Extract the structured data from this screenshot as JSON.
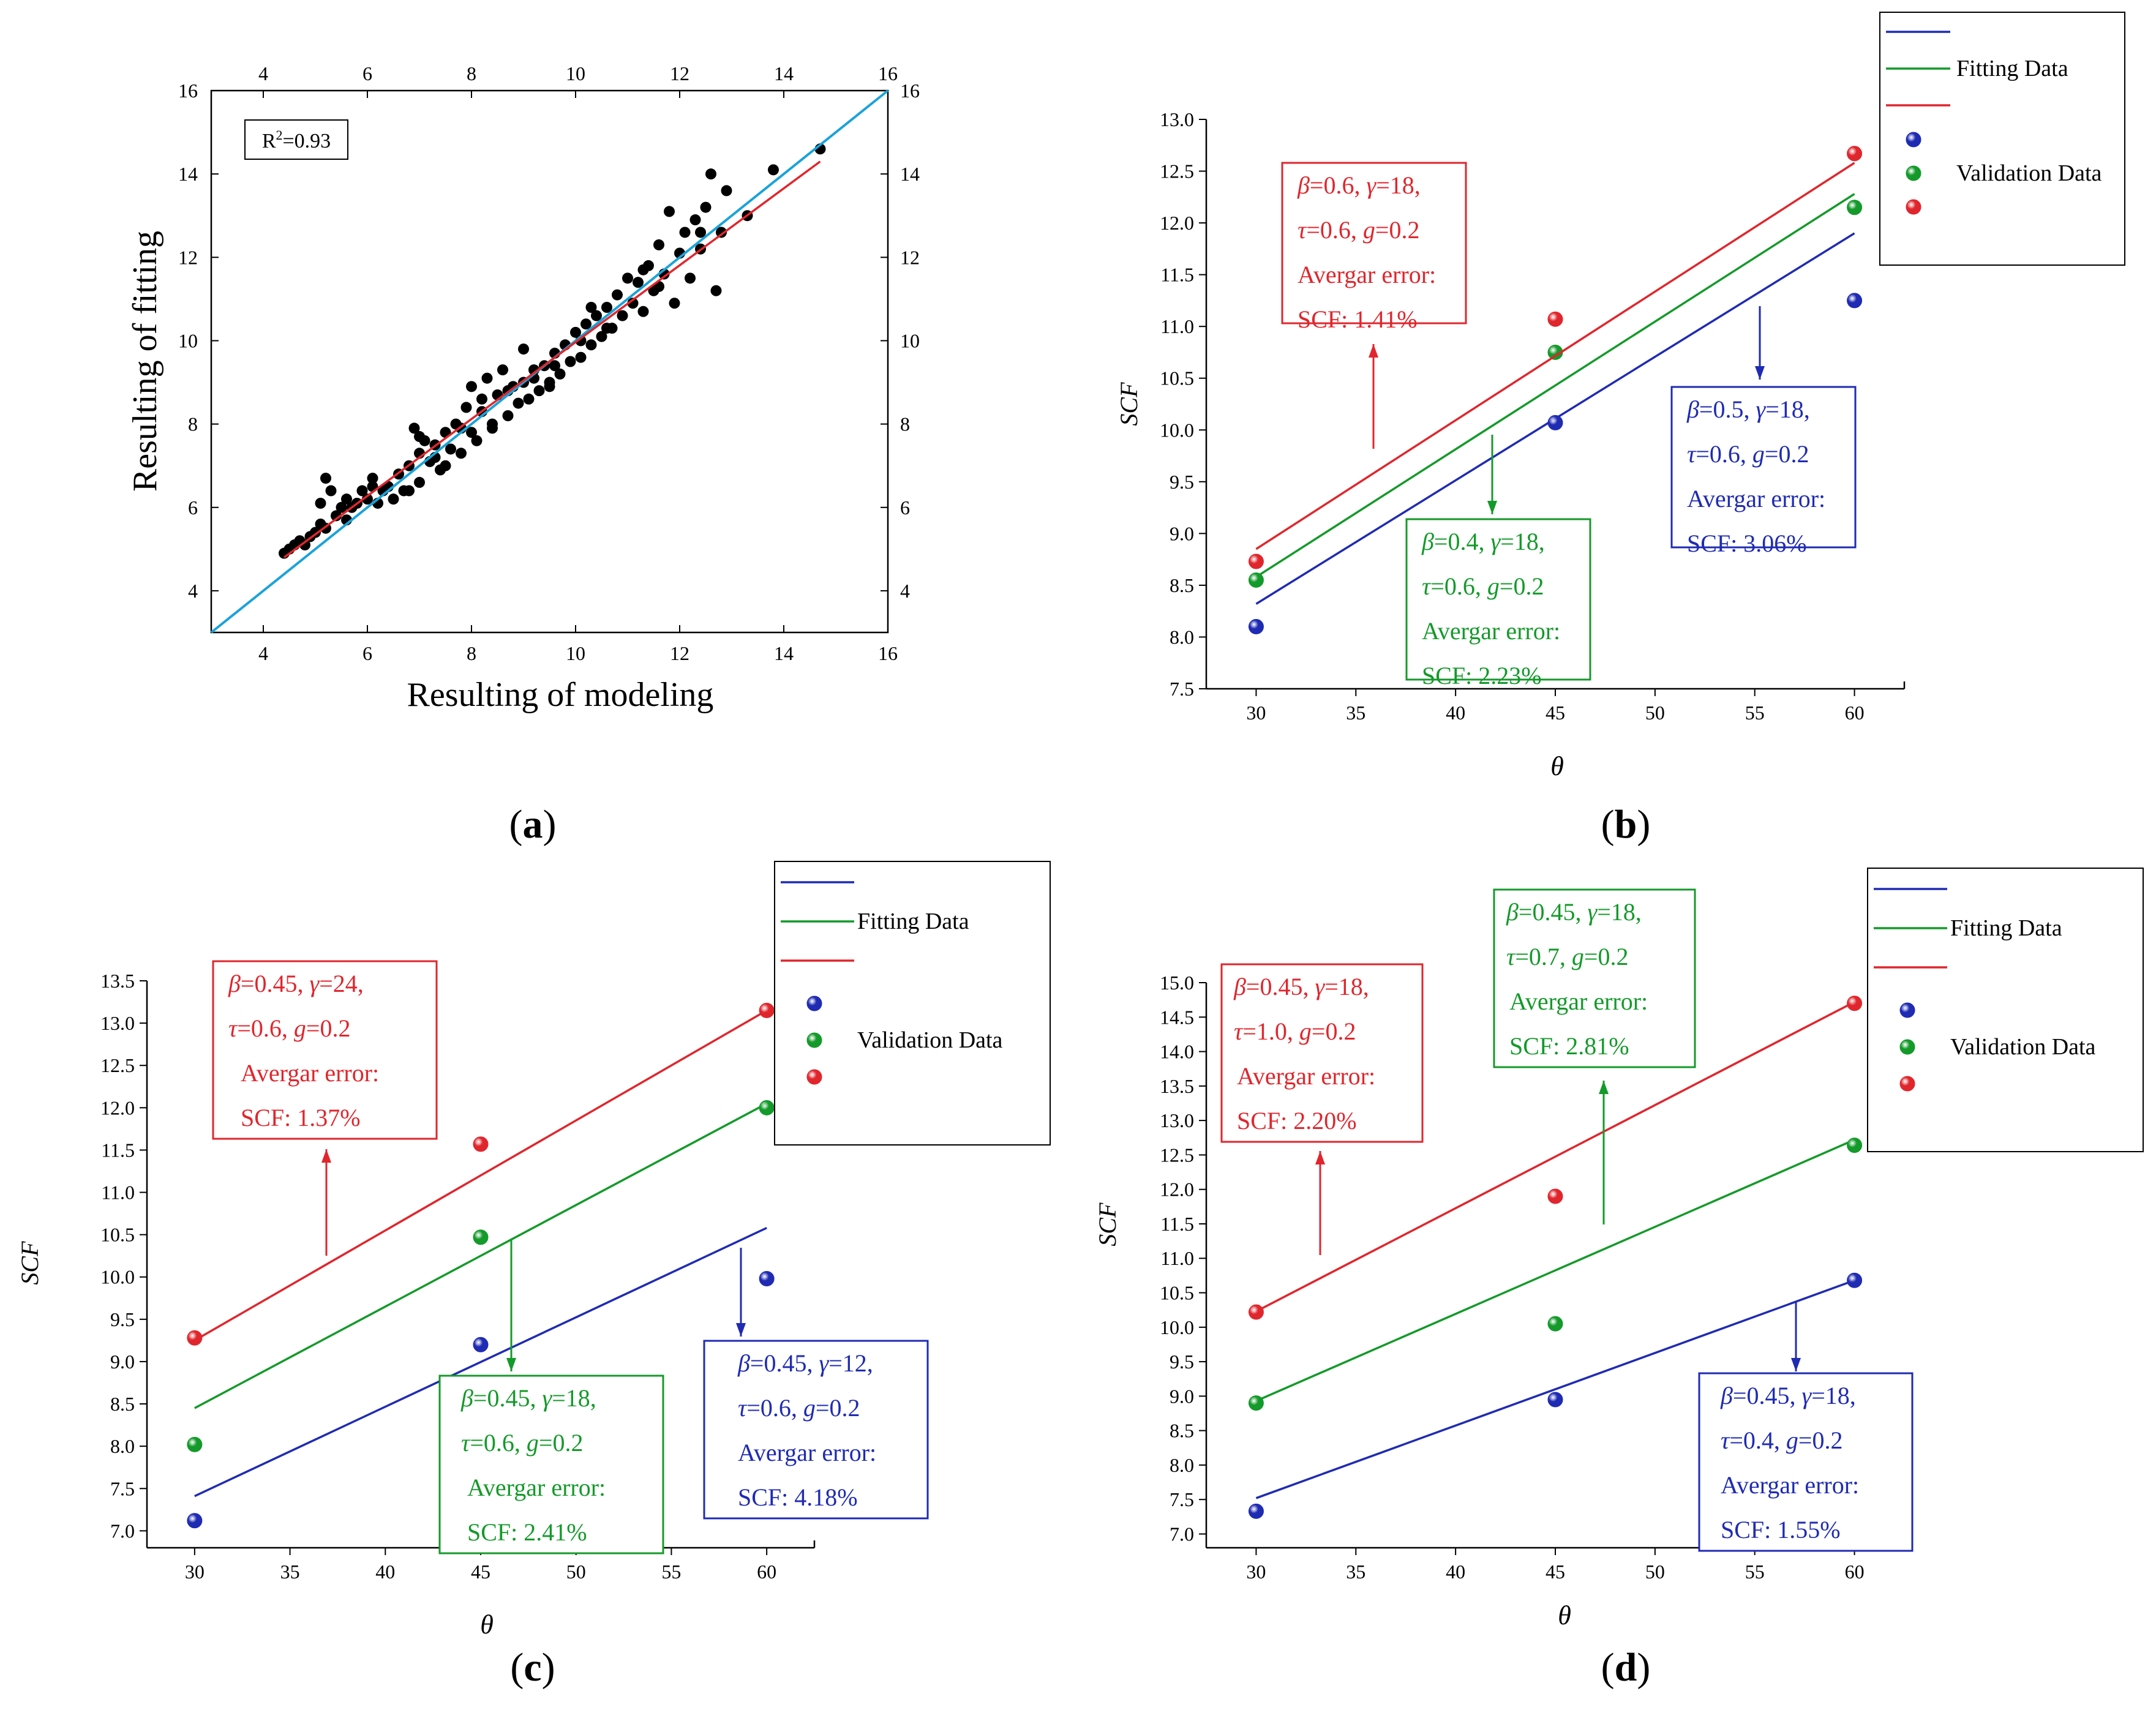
{
  "chart_data": [
    {
      "panel": "a",
      "panel_label": "a",
      "type": "scatter",
      "xlabel": "Resulting of modeling",
      "ylabel": "Resulting of fitting",
      "xlim": [
        3,
        16
      ],
      "ylim": [
        3,
        16
      ],
      "xticks": [
        4,
        6,
        8,
        10,
        12,
        14,
        16
      ],
      "yticks": [
        4,
        6,
        8,
        10,
        12,
        14,
        16
      ],
      "annotation": {
        "r2_prefix": "R",
        "r2_sup": "2",
        "r2_value": "=0.93"
      },
      "colors": {
        "points": "#000000",
        "ideal_line": "#1aa3d8",
        "fit_line": "#e0262d"
      },
      "ideal_line": {
        "x": [
          3,
          16
        ],
        "y": [
          3,
          16
        ]
      },
      "fit_line": {
        "x": [
          4.4,
          14.7
        ],
        "y": [
          4.8,
          14.3
        ]
      },
      "points": [
        [
          4.4,
          4.9
        ],
        [
          4.5,
          5.0
        ],
        [
          4.6,
          5.1
        ],
        [
          4.7,
          5.2
        ],
        [
          4.8,
          5.1
        ],
        [
          4.9,
          5.3
        ],
        [
          5.0,
          5.4
        ],
        [
          5.1,
          5.6
        ],
        [
          5.1,
          6.1
        ],
        [
          5.2,
          6.7
        ],
        [
          5.3,
          6.4
        ],
        [
          5.4,
          5.8
        ],
        [
          5.5,
          6.0
        ],
        [
          5.6,
          6.2
        ],
        [
          5.7,
          6.0
        ],
        [
          5.8,
          6.1
        ],
        [
          5.9,
          6.4
        ],
        [
          6.0,
          6.2
        ],
        [
          6.1,
          6.7
        ],
        [
          6.2,
          6.1
        ],
        [
          6.3,
          6.4
        ],
        [
          6.4,
          6.5
        ],
        [
          6.5,
          6.2
        ],
        [
          6.6,
          6.8
        ],
        [
          6.7,
          6.4
        ],
        [
          6.8,
          7.0
        ],
        [
          6.9,
          7.9
        ],
        [
          7.0,
          7.3
        ],
        [
          7.0,
          6.6
        ],
        [
          7.1,
          7.6
        ],
        [
          7.2,
          7.1
        ],
        [
          7.3,
          7.5
        ],
        [
          7.4,
          6.9
        ],
        [
          7.5,
          7.8
        ],
        [
          7.5,
          7.0
        ],
        [
          7.6,
          7.4
        ],
        [
          7.7,
          8.0
        ],
        [
          7.8,
          7.3
        ],
        [
          7.9,
          8.4
        ],
        [
          8.0,
          7.8
        ],
        [
          8.0,
          8.9
        ],
        [
          8.1,
          7.6
        ],
        [
          8.2,
          8.3
        ],
        [
          8.3,
          9.1
        ],
        [
          8.4,
          8.0
        ],
        [
          8.5,
          8.7
        ],
        [
          8.6,
          9.3
        ],
        [
          8.7,
          8.2
        ],
        [
          8.8,
          8.9
        ],
        [
          8.9,
          8.5
        ],
        [
          9.0,
          9.0
        ],
        [
          9.1,
          8.6
        ],
        [
          9.2,
          9.3
        ],
        [
          9.3,
          8.8
        ],
        [
          9.4,
          9.4
        ],
        [
          9.5,
          8.9
        ],
        [
          9.6,
          9.7
        ],
        [
          9.7,
          9.2
        ],
        [
          9.8,
          9.9
        ],
        [
          9.9,
          9.5
        ],
        [
          10.0,
          10.2
        ],
        [
          10.1,
          9.6
        ],
        [
          10.2,
          10.4
        ],
        [
          10.3,
          9.9
        ],
        [
          10.4,
          10.6
        ],
        [
          10.5,
          10.1
        ],
        [
          10.6,
          10.8
        ],
        [
          10.7,
          10.3
        ],
        [
          10.8,
          11.1
        ],
        [
          10.9,
          10.6
        ],
        [
          11.0,
          11.5
        ],
        [
          11.1,
          10.9
        ],
        [
          11.2,
          11.4
        ],
        [
          11.3,
          10.7
        ],
        [
          11.4,
          11.8
        ],
        [
          11.5,
          11.2
        ],
        [
          11.6,
          12.3
        ],
        [
          11.7,
          11.6
        ],
        [
          11.8,
          13.1
        ],
        [
          11.9,
          10.9
        ],
        [
          12.0,
          12.1
        ],
        [
          12.1,
          12.6
        ],
        [
          12.2,
          11.5
        ],
        [
          12.3,
          12.9
        ],
        [
          12.4,
          12.2
        ],
        [
          12.5,
          13.2
        ],
        [
          12.6,
          14.0
        ],
        [
          12.7,
          11.2
        ],
        [
          12.8,
          12.6
        ],
        [
          12.9,
          13.6
        ],
        [
          13.3,
          13.0
        ],
        [
          13.8,
          14.1
        ],
        [
          14.7,
          14.6
        ],
        [
          5.2,
          5.5
        ],
        [
          5.6,
          5.7
        ],
        [
          6.1,
          6.5
        ],
        [
          6.8,
          6.4
        ],
        [
          7.3,
          7.2
        ],
        [
          7.8,
          7.9
        ],
        [
          8.2,
          8.6
        ],
        [
          8.7,
          8.8
        ],
        [
          9.2,
          9.1
        ],
        [
          9.6,
          9.4
        ],
        [
          10.1,
          10.0
        ],
        [
          10.6,
          10.3
        ],
        [
          11.3,
          11.7
        ],
        [
          11.6,
          11.3
        ],
        [
          12.4,
          12.6
        ],
        [
          9.0,
          9.8
        ],
        [
          9.5,
          9.0
        ],
        [
          10.3,
          10.8
        ],
        [
          8.4,
          7.9
        ],
        [
          7.0,
          7.7
        ]
      ]
    },
    {
      "panel": "b",
      "panel_label": "b",
      "type": "line+scatter",
      "xlabel": "θ",
      "ylabel": "SCF",
      "xlim": [
        27.5,
        62.5
      ],
      "ylim": [
        7.5,
        13.0
      ],
      "xticks": [
        30,
        35,
        40,
        45,
        50,
        55,
        60
      ],
      "yticks": [
        7.5,
        8.0,
        8.5,
        9.0,
        9.5,
        10.0,
        10.5,
        11.0,
        11.5,
        12.0,
        12.5,
        13.0
      ],
      "legend": {
        "fitting_label": "Fitting Data",
        "validation_label": "Validation Data"
      },
      "series": [
        {
          "name": "blue",
          "color": "#1f2bb3",
          "fit": {
            "x": [
              30,
              60
            ],
            "y": [
              8.32,
              11.9
            ]
          },
          "validation": {
            "x": [
              30,
              45,
              60
            ],
            "y": [
              8.1,
              10.07,
              11.25
            ]
          },
          "box": {
            "params1": "β=0.5, γ=18,",
            "params2": "τ=0.6, g=0.2",
            "err1": "Avergar error:",
            "err2": "SCF: 3.06%"
          }
        },
        {
          "name": "green",
          "color": "#149a2a",
          "fit": {
            "x": [
              30,
              60
            ],
            "y": [
              8.58,
              12.28
            ]
          },
          "validation": {
            "x": [
              30,
              45,
              60
            ],
            "y": [
              8.55,
              10.75,
              12.15
            ]
          },
          "box": {
            "params1": "β=0.4, γ=18,",
            "params2": "τ=0.6, g=0.2",
            "err1": "Avergar error:",
            "err2": "SCF: 2.23%"
          }
        },
        {
          "name": "red",
          "color": "#e0262d",
          "fit": {
            "x": [
              30,
              60
            ],
            "y": [
              8.85,
              12.58
            ]
          },
          "validation": {
            "x": [
              30,
              45,
              60
            ],
            "y": [
              8.73,
              11.07,
              12.67
            ]
          },
          "box": {
            "params1": "β=0.6, γ=18,",
            "params2": "τ=0.6, g=0.2",
            "err1": "Avergar error:",
            "err2": "SCF: 1.41%"
          }
        }
      ]
    },
    {
      "panel": "c",
      "panel_label": "c",
      "type": "line+scatter",
      "xlabel": "θ",
      "ylabel": "SCF",
      "xlim": [
        27.5,
        62.5
      ],
      "ylim": [
        6.8,
        13.5
      ],
      "xticks": [
        30,
        35,
        40,
        45,
        50,
        55,
        60
      ],
      "yticks": [
        7.0,
        7.5,
        8.0,
        8.5,
        9.0,
        9.5,
        10.0,
        10.5,
        11.0,
        11.5,
        12.0,
        12.5,
        13.0,
        13.5
      ],
      "legend": {
        "fitting_label": "Fitting Data",
        "validation_label": "Validation Data"
      },
      "series": [
        {
          "name": "blue",
          "color": "#1f2bb3",
          "fit": {
            "x": [
              30,
              60
            ],
            "y": [
              7.41,
              10.58
            ]
          },
          "validation": {
            "x": [
              30,
              45,
              60
            ],
            "y": [
              7.12,
              9.2,
              9.98
            ]
          },
          "box": {
            "params1": "β=0.45, γ=12,",
            "params2": "τ=0.6, g=0.2",
            "err1": "Avergar error:",
            "err2": "SCF: 4.18%"
          }
        },
        {
          "name": "green",
          "color": "#149a2a",
          "fit": {
            "x": [
              30,
              60
            ],
            "y": [
              8.45,
              12.05
            ]
          },
          "validation": {
            "x": [
              30,
              45,
              60
            ],
            "y": [
              8.02,
              10.47,
              12.0
            ]
          },
          "box": {
            "params1": "β=0.45, γ=18,",
            "params2": "τ=0.6, g=0.2",
            "err1": "Avergar error:",
            "err2": "SCF: 2.41%"
          }
        },
        {
          "name": "red",
          "color": "#e0262d",
          "fit": {
            "x": [
              30,
              60
            ],
            "y": [
              9.25,
              13.15
            ]
          },
          "validation": {
            "x": [
              30,
              45,
              60
            ],
            "y": [
              9.28,
              11.57,
              13.15
            ]
          },
          "box": {
            "params1": "β=0.45, γ=24,",
            "params2": "τ=0.6, g=0.2",
            "err1": "Avergar error:",
            "err2": "SCF: 1.37%"
          }
        }
      ]
    },
    {
      "panel": "d",
      "panel_label": "d",
      "type": "line+scatter",
      "xlabel": "θ",
      "ylabel": "SCF",
      "xlim": [
        27.5,
        62.5
      ],
      "ylim": [
        6.8,
        15.0
      ],
      "xticks": [
        30,
        35,
        40,
        45,
        50,
        55,
        60
      ],
      "yticks": [
        7.0,
        7.5,
        8.0,
        8.5,
        9.0,
        9.5,
        10.0,
        10.5,
        11.0,
        11.5,
        12.0,
        12.5,
        13.0,
        13.5,
        14.0,
        14.5,
        15.0
      ],
      "legend": {
        "fitting_label": "Fitting Data",
        "validation_label": "Validation Data"
      },
      "series": [
        {
          "name": "blue",
          "color": "#1f2bb3",
          "fit": {
            "x": [
              30,
              60
            ],
            "y": [
              7.52,
              10.68
            ]
          },
          "validation": {
            "x": [
              30,
              45,
              60
            ],
            "y": [
              7.33,
              8.95,
              10.68
            ]
          },
          "box": {
            "params1": "β=0.45, γ=18,",
            "params2": "τ=0.4, g=0.2",
            "err1": "Avergar error:",
            "err2": "SCF: 1.55%"
          }
        },
        {
          "name": "green",
          "color": "#149a2a",
          "fit": {
            "x": [
              30,
              60
            ],
            "y": [
              8.93,
              12.72
            ]
          },
          "validation": {
            "x": [
              30,
              45,
              60
            ],
            "y": [
              8.9,
              10.05,
              12.64
            ]
          },
          "box": {
            "params1": "β=0.45, γ=18,",
            "params2": "τ=0.7, g=0.2",
            "err1": "Avergar error:",
            "err2": "SCF: 2.81%"
          }
        },
        {
          "name": "red",
          "color": "#e0262d",
          "fit": {
            "x": [
              30,
              60
            ],
            "y": [
              10.23,
              14.72
            ]
          },
          "validation": {
            "x": [
              30,
              45,
              60
            ],
            "y": [
              10.22,
              11.9,
              14.7
            ]
          },
          "box": {
            "params1": "β=0.45, γ=18,",
            "params2": "τ=1.0, g=0.2",
            "err1": "Avergar error:",
            "err2": "SCF: 2.20%"
          }
        }
      ]
    }
  ]
}
